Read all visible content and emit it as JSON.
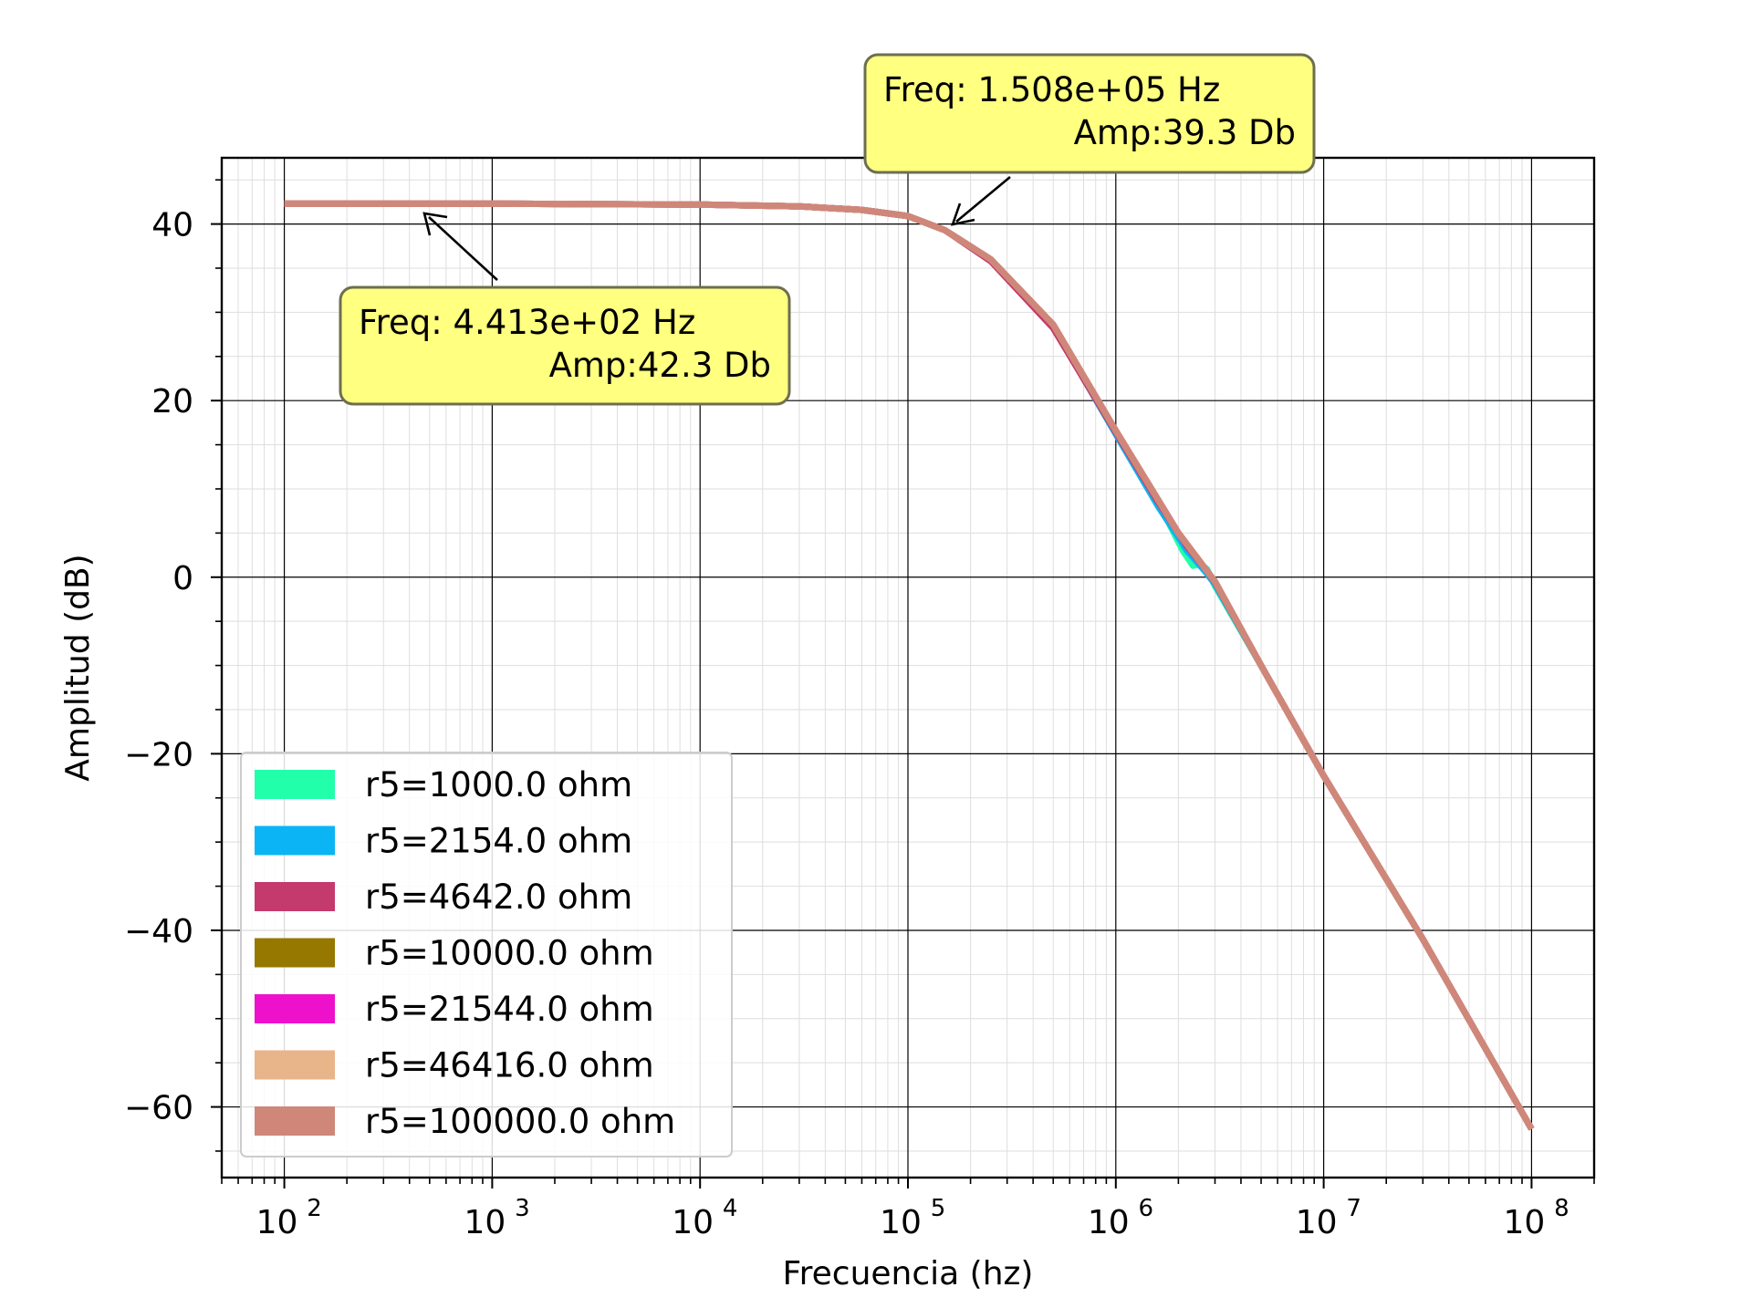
{
  "chart_data": {
    "type": "line",
    "title": "",
    "xlabel": "Frecuencia (hz)",
    "ylabel": "Amplitud (dB)",
    "x_scale": "log",
    "xlim": [
      50,
      200000000
    ],
    "ylim": [
      -68,
      47.5
    ],
    "grid": true,
    "x_ticks": [
      {
        "value": 100,
        "base": "10",
        "exp": "2"
      },
      {
        "value": 1000,
        "base": "10",
        "exp": "3"
      },
      {
        "value": 10000,
        "base": "10",
        "exp": "4"
      },
      {
        "value": 100000,
        "base": "10",
        "exp": "5"
      },
      {
        "value": 1000000,
        "base": "10",
        "exp": "6"
      },
      {
        "value": 10000000,
        "base": "10",
        "exp": "7"
      },
      {
        "value": 100000000,
        "base": "10",
        "exp": "8"
      }
    ],
    "y_ticks": [
      {
        "value": 40,
        "label": "40"
      },
      {
        "value": 20,
        "label": "20"
      },
      {
        "value": 0,
        "label": "0"
      },
      {
        "value": -20,
        "label": "−20"
      },
      {
        "value": -40,
        "label": "−40"
      },
      {
        "value": -60,
        "label": "−60"
      }
    ],
    "legend_position": "lower-left",
    "series": [
      {
        "name": "r5=1000.0 ohm",
        "color": "#22ffaa",
        "x": [
          100,
          1000,
          10000,
          30000,
          60000,
          100000,
          150800,
          250000,
          500000,
          1000000,
          1600000,
          2100000,
          2350000,
          2550000,
          2750000,
          3000000,
          5000000,
          10000000,
          30000000,
          100000000
        ],
        "y": [
          42.3,
          42.3,
          42.2,
          42.0,
          41.6,
          40.9,
          39.3,
          36.0,
          28.5,
          16.5,
          8.5,
          3.0,
          1.3,
          1.5,
          0.9,
          -1.0,
          -10.0,
          -22.5,
          -41.0,
          -62.5
        ]
      },
      {
        "name": "r5=2154.0 ohm",
        "color": "#0bb4f5",
        "x": [
          100,
          1000,
          10000,
          30000,
          60000,
          100000,
          150800,
          250000,
          500000,
          1000000,
          1600000,
          2200000,
          2700000,
          3000000,
          5000000,
          10000000,
          30000000,
          100000000
        ],
        "y": [
          42.3,
          42.3,
          42.2,
          42.0,
          41.6,
          40.9,
          39.3,
          36.0,
          28.4,
          16.2,
          8.0,
          3.0,
          0.6,
          -0.8,
          -10.0,
          -22.5,
          -41.0,
          -62.5
        ]
      },
      {
        "name": "r5=4642.0 ohm",
        "color": "#c43a6c",
        "x": [
          100,
          1000,
          10000,
          30000,
          60000,
          100000,
          150800,
          250000,
          500000,
          1000000,
          1600000,
          2200000,
          2700000,
          3000000,
          5000000,
          10000000,
          30000000,
          100000000
        ],
        "y": [
          42.3,
          42.3,
          42.2,
          42.0,
          41.6,
          40.9,
          39.3,
          35.8,
          28.2,
          16.4,
          8.5,
          3.5,
          0.9,
          -0.6,
          -10.0,
          -22.5,
          -41.0,
          -62.5
        ]
      },
      {
        "name": "r5=10000.0 ohm",
        "color": "#967800",
        "x": [
          100,
          1000,
          10000,
          30000,
          60000,
          100000,
          150800,
          250000,
          500000,
          1000000,
          2000000,
          3000000,
          5000000,
          10000000,
          30000000,
          100000000
        ],
        "y": [
          42.3,
          42.3,
          42.2,
          42.0,
          41.6,
          40.9,
          39.3,
          36.0,
          28.6,
          16.6,
          5.0,
          -0.5,
          -10.0,
          -22.5,
          -41.0,
          -62.5
        ]
      },
      {
        "name": "r5=21544.0 ohm",
        "color": "#ee11cc",
        "x": [
          100,
          1000,
          10000,
          30000,
          60000,
          100000,
          150800,
          250000,
          500000,
          1000000,
          2000000,
          3000000,
          5000000,
          10000000,
          30000000,
          100000000
        ],
        "y": [
          42.3,
          42.3,
          42.2,
          42.0,
          41.6,
          40.9,
          39.3,
          36.0,
          28.6,
          16.6,
          5.0,
          -0.5,
          -10.0,
          -22.5,
          -41.0,
          -62.5
        ]
      },
      {
        "name": "r5=46416.0 ohm",
        "color": "#e8b48a",
        "x": [
          100,
          1000,
          10000,
          30000,
          60000,
          100000,
          150800,
          250000,
          500000,
          1000000,
          2000000,
          3000000,
          5000000,
          10000000,
          30000000,
          100000000
        ],
        "y": [
          42.3,
          42.3,
          42.2,
          42.0,
          41.6,
          40.9,
          39.3,
          36.0,
          28.6,
          16.6,
          5.0,
          -0.5,
          -10.0,
          -22.5,
          -41.0,
          -62.5
        ]
      },
      {
        "name": "r5=100000.0 ohm",
        "color": "#cf8779",
        "x": [
          100,
          1000,
          10000,
          30000,
          60000,
          100000,
          150800,
          250000,
          500000,
          1000000,
          2000000,
          3000000,
          5000000,
          10000000,
          30000000,
          100000000
        ],
        "y": [
          42.3,
          42.3,
          42.2,
          42.0,
          41.6,
          40.9,
          39.3,
          36.0,
          28.6,
          16.6,
          5.0,
          -0.5,
          -10.0,
          -22.5,
          -41.0,
          -62.5
        ]
      }
    ],
    "annotations": [
      {
        "line1": "Freq: 1.508e+05  Hz",
        "line2": "Amp:39.3 Db",
        "x": 150800,
        "y": 39.3
      },
      {
        "line1": "Freq: 4.413e+02  Hz",
        "line2": "Amp:42.3 Db",
        "x": 441.3,
        "y": 42.3
      }
    ],
    "colors": {
      "annotation_fill": "#ffff80",
      "annotation_border": "#6e6e50",
      "background": "#ffffff"
    }
  }
}
